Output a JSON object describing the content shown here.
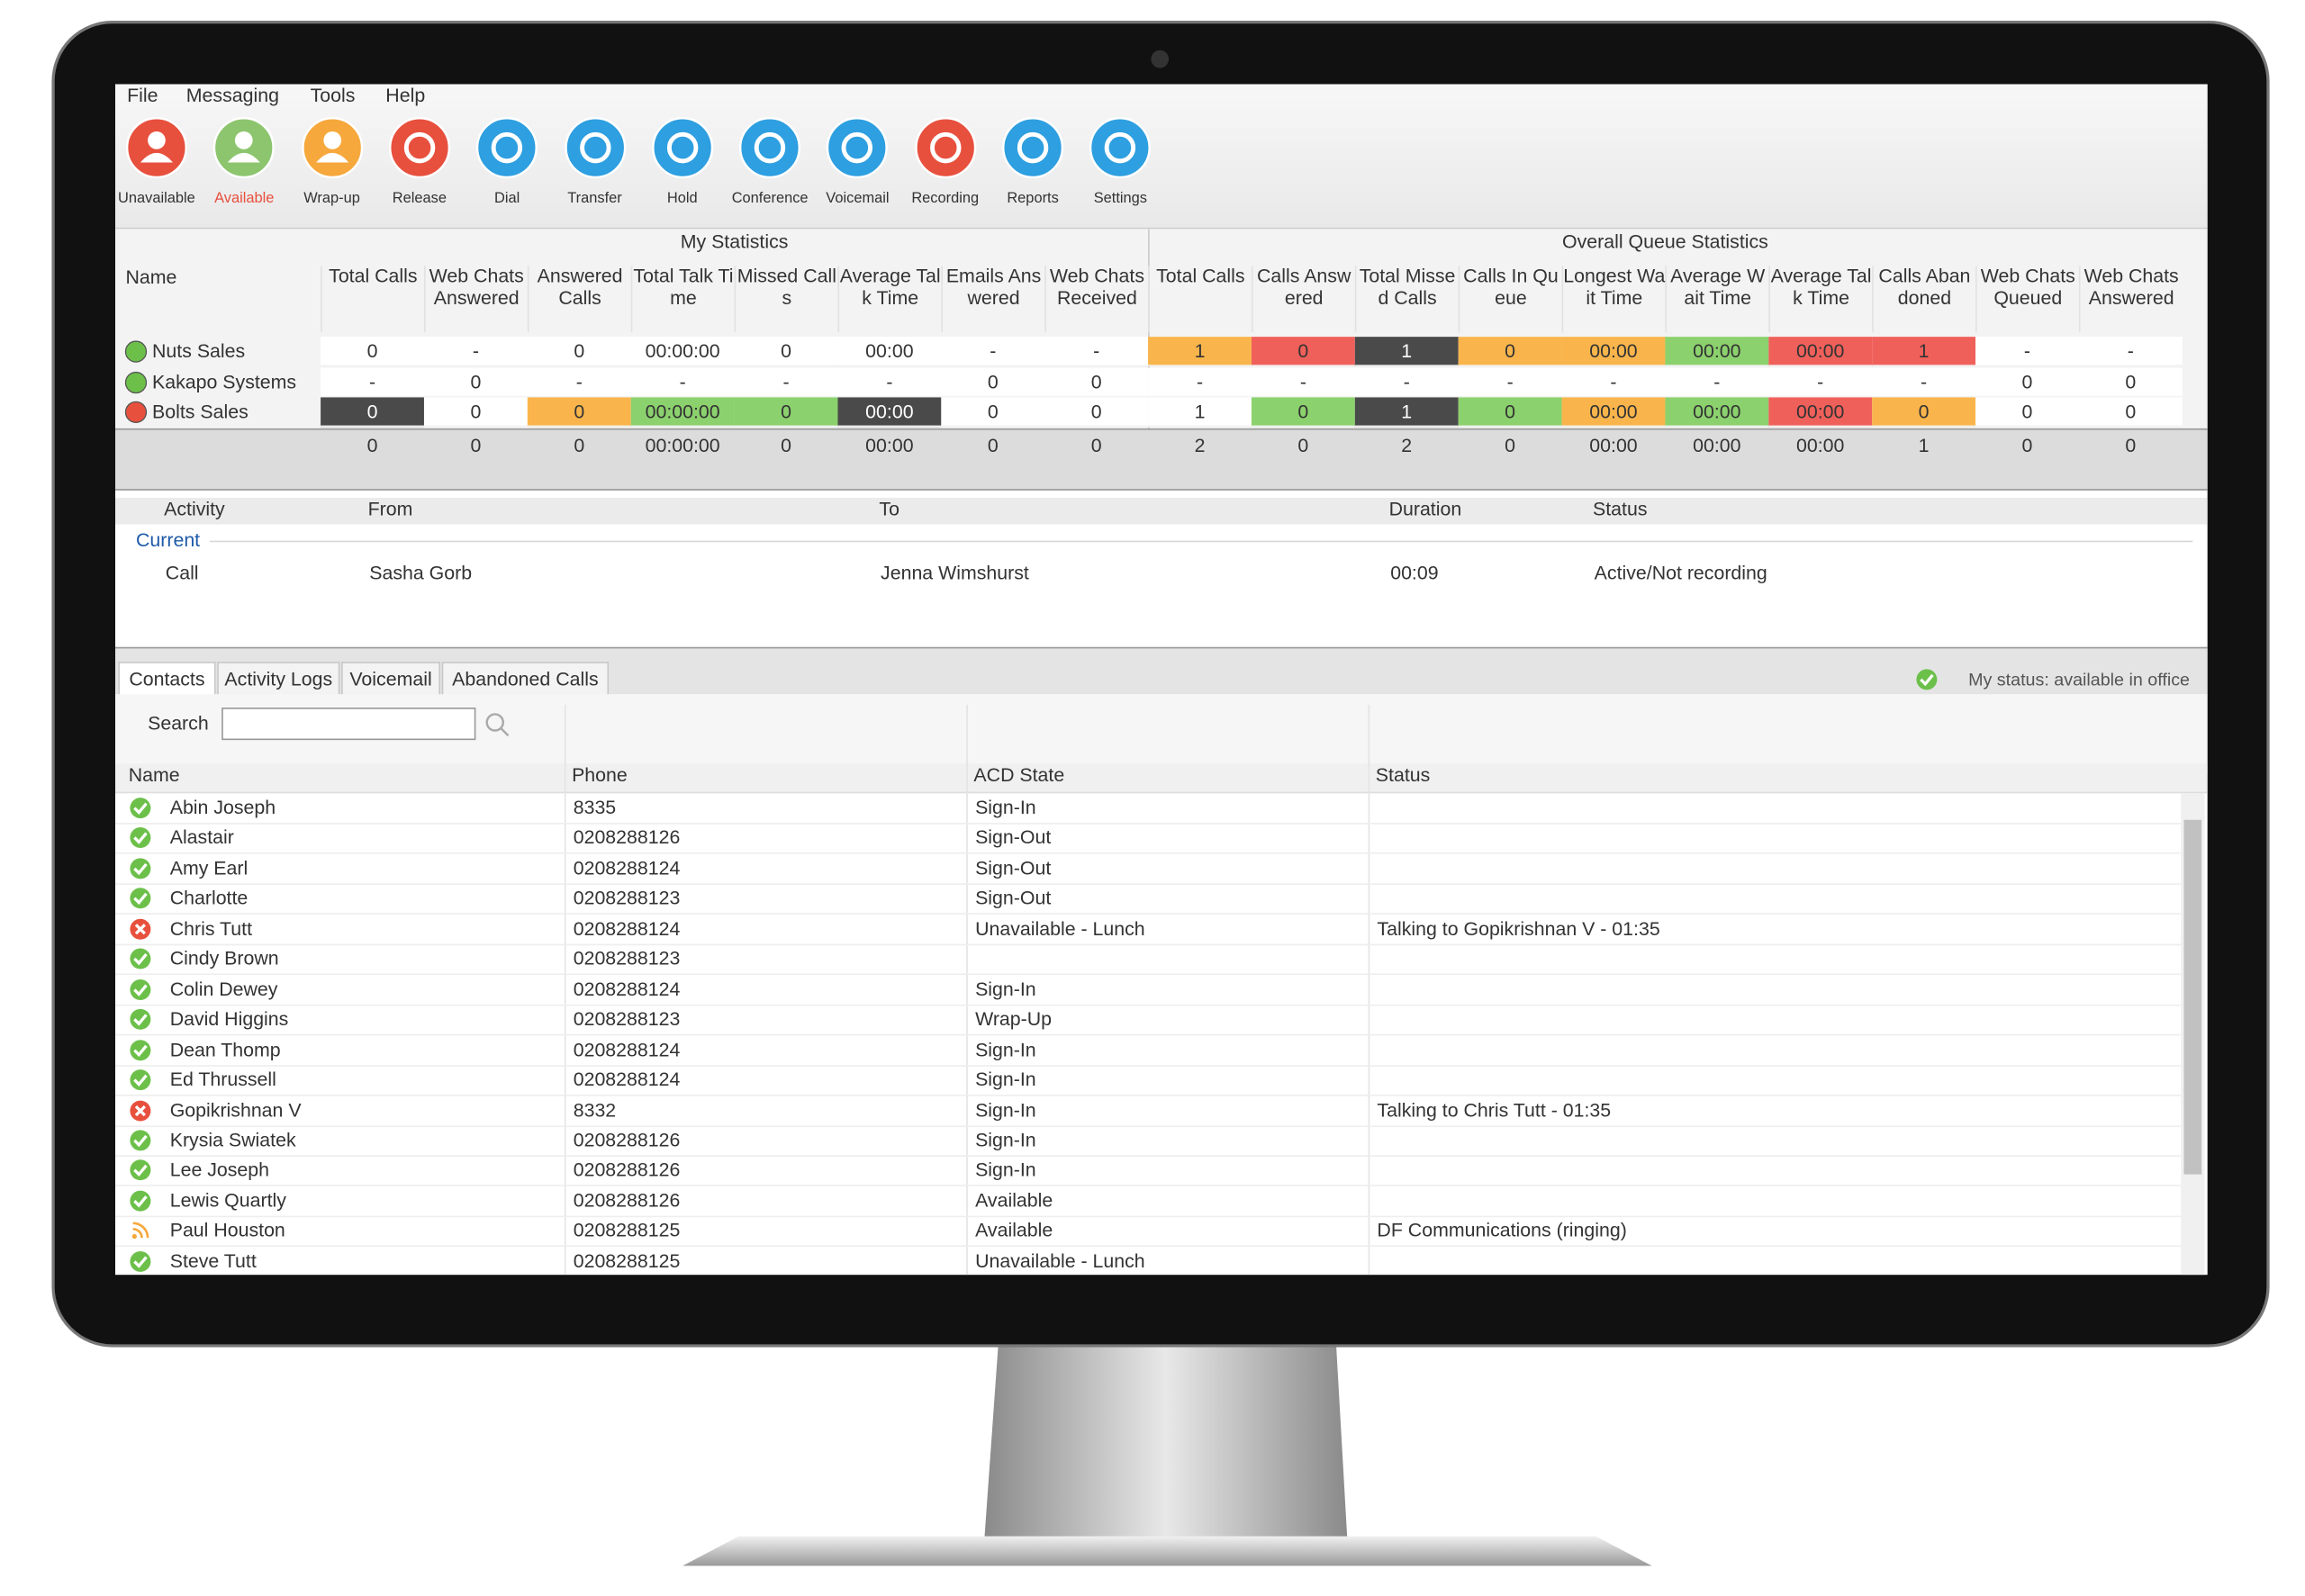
{
  "menu": [
    "File",
    "Messaging",
    "Tools",
    "Help"
  ],
  "toolbar": [
    {
      "label": "Unavailable",
      "color": "#e8503e"
    },
    {
      "label": "Available",
      "color": "#8cc56e"
    },
    {
      "label": "Wrap-up",
      "color": "#f6a83c"
    },
    {
      "label": "Release",
      "color": "#e8503e"
    },
    {
      "label": "Dial",
      "color": "#2e9fe0"
    },
    {
      "label": "Transfer",
      "color": "#2e9fe0"
    },
    {
      "label": "Hold",
      "color": "#2e9fe0"
    },
    {
      "label": "Conference",
      "color": "#2e9fe0"
    },
    {
      "label": "Voicemail",
      "color": "#2e9fe0"
    },
    {
      "label": "Recording",
      "color": "#e8503e"
    },
    {
      "label": "Reports",
      "color": "#2e9fe0"
    },
    {
      "label": "Settings",
      "color": "#2e9fe0"
    }
  ],
  "statistics": {
    "groups": [
      "My Statistics",
      "Overall Queue Statistics"
    ],
    "name_header": "Name",
    "columns": [
      "Total Calls",
      "Web Chats Answered",
      "Answered Calls",
      "Total Talk Time",
      "Missed Calls",
      "Average Talk Time",
      "Emails Answered",
      "Web Chats Received",
      "Total Calls",
      "Calls Answered",
      "Total Missed Calls",
      "Calls In Queue",
      "Longest Wait Time",
      "Average Wait Time",
      "Average Talk Time",
      "Calls Abandoned",
      "Web Chats Queued",
      "Web Chats Answered"
    ],
    "rows": [
      {
        "name": "Nuts Sales",
        "status_color": "#6cc04a",
        "cells": [
          "0",
          "-",
          "0",
          "00:00:00",
          "0",
          "00:00",
          "-",
          "-",
          "1",
          "0",
          "1",
          "0",
          "00:00",
          "00:00",
          "00:00",
          "1",
          "-",
          "-"
        ],
        "cell_colors": [
          null,
          null,
          null,
          null,
          null,
          null,
          null,
          null,
          "#f9b54c",
          "#f0605a",
          "#4a4a4a",
          "#f9b54c",
          "#f9b54c",
          "#8bd16d",
          "#f0605a",
          "#f0605a",
          null,
          null
        ]
      },
      {
        "name": "Kakapo Systems",
        "status_color": "#6cc04a",
        "cells": [
          "-",
          "0",
          "-",
          "-",
          "-",
          "-",
          "0",
          "0",
          "-",
          "-",
          "-",
          "-",
          "-",
          "-",
          "-",
          "-",
          "0",
          "0"
        ],
        "cell_colors": [
          null,
          null,
          null,
          null,
          null,
          null,
          null,
          null,
          null,
          null,
          null,
          null,
          null,
          null,
          null,
          null,
          null,
          null
        ]
      },
      {
        "name": "Bolts Sales",
        "status_color": "#e8503e",
        "cells": [
          "0",
          "0",
          "0",
          "00:00:00",
          "0",
          "00:00",
          "0",
          "0",
          "1",
          "0",
          "1",
          "0",
          "00:00",
          "00:00",
          "00:00",
          "0",
          "0",
          "0"
        ],
        "cell_colors": [
          "#4a4a4a",
          null,
          "#f9b54c",
          "#8bd16d",
          "#8bd16d",
          "#4a4a4a",
          null,
          null,
          null,
          "#8bd16d",
          "#4a4a4a",
          "#8bd16d",
          "#f9b54c",
          "#8bd16d",
          "#f0605a",
          "#f9b54c",
          null,
          null
        ]
      }
    ],
    "totals": [
      "0",
      "0",
      "0",
      "00:00:00",
      "0",
      "00:00",
      "0",
      "0",
      "2",
      "0",
      "2",
      "0",
      "00:00",
      "00:00",
      "00:00",
      "1",
      "0",
      "0"
    ]
  },
  "activity": {
    "columns": [
      "Activity",
      "From",
      "To",
      "Duration",
      "Status"
    ],
    "group": "Current",
    "rows": [
      [
        "Call",
        "Sasha Gorb",
        "Jenna Wimshurst",
        "00:09",
        "Active/Not recording"
      ]
    ]
  },
  "tabs": [
    "Contacts",
    "Activity Logs",
    "Voicemail",
    "Abandoned Calls"
  ],
  "my_status": "My status: available in office",
  "search_label": "Search",
  "contacts": {
    "columns": [
      "Name",
      "Phone",
      "ACD State",
      "Status"
    ],
    "rows": [
      {
        "name": "Abin Joseph",
        "phone": "8335",
        "acd_state": "Sign-In",
        "status": null,
        "status_color": "#6cc04a"
      },
      {
        "name": "Alastair",
        "phone": "0208288126",
        "acd_state": "Sign-Out",
        "status": null,
        "status_color": "#6cc04a"
      },
      {
        "name": "Amy Earl",
        "phone": "0208288124",
        "acd_state": "Sign-Out",
        "status": null,
        "status_color": "#6cc04a"
      },
      {
        "name": "Charlotte",
        "phone": "0208288123",
        "acd_state": "Sign-Out",
        "status": null,
        "status_color": "#6cc04a"
      },
      {
        "name": "Chris Tutt",
        "phone": "0208288124",
        "acd_state": "Unavailable - Lunch",
        "status": "Talking to Gopikrishnan V - 01:35",
        "status_color": "#e8503e"
      },
      {
        "name": "Cindy Brown",
        "phone": "0208288123",
        "acd_state": null,
        "status": null,
        "status_color": "#6cc04a"
      },
      {
        "name": "Colin Dewey",
        "phone": "0208288124",
        "acd_state": "Sign-In",
        "status": null,
        "status_color": "#6cc04a"
      },
      {
        "name": "David Higgins",
        "phone": "0208288123",
        "acd_state": "Wrap-Up",
        "status": null,
        "status_color": "#6cc04a"
      },
      {
        "name": "Dean Thomp",
        "phone": "0208288124",
        "acd_state": "Sign-In",
        "status": null,
        "status_color": "#6cc04a"
      },
      {
        "name": "Ed Thrussell",
        "phone": "0208288124",
        "acd_state": "Sign-In",
        "status": null,
        "status_color": "#6cc04a"
      },
      {
        "name": "Gopikrishnan V",
        "phone": "8332",
        "acd_state": "Sign-In",
        "status": "Talking to Chris Tutt - 01:35",
        "status_color": "#e8503e"
      },
      {
        "name": "Krysia Swiatek",
        "phone": "0208288126",
        "acd_state": "Sign-In",
        "status": null,
        "status_color": "#6cc04a"
      },
      {
        "name": "Lee Joseph",
        "phone": "0208288126",
        "acd_state": "Sign-In",
        "status": null,
        "status_color": "#6cc04a"
      },
      {
        "name": "Lewis Quartly",
        "phone": "0208288126",
        "acd_state": "Available",
        "status": null,
        "status_color": "#6cc04a"
      },
      {
        "name": "Paul Houston",
        "phone": "0208288125",
        "acd_state": "Available",
        "status": "DF Communications (ringing)",
        "status_color": "#f6a83c"
      },
      {
        "name": "Steve Tutt",
        "phone": "0208288125",
        "acd_state": "Unavailable - Lunch",
        "status": null,
        "status_color": "#6cc04a"
      }
    ]
  }
}
